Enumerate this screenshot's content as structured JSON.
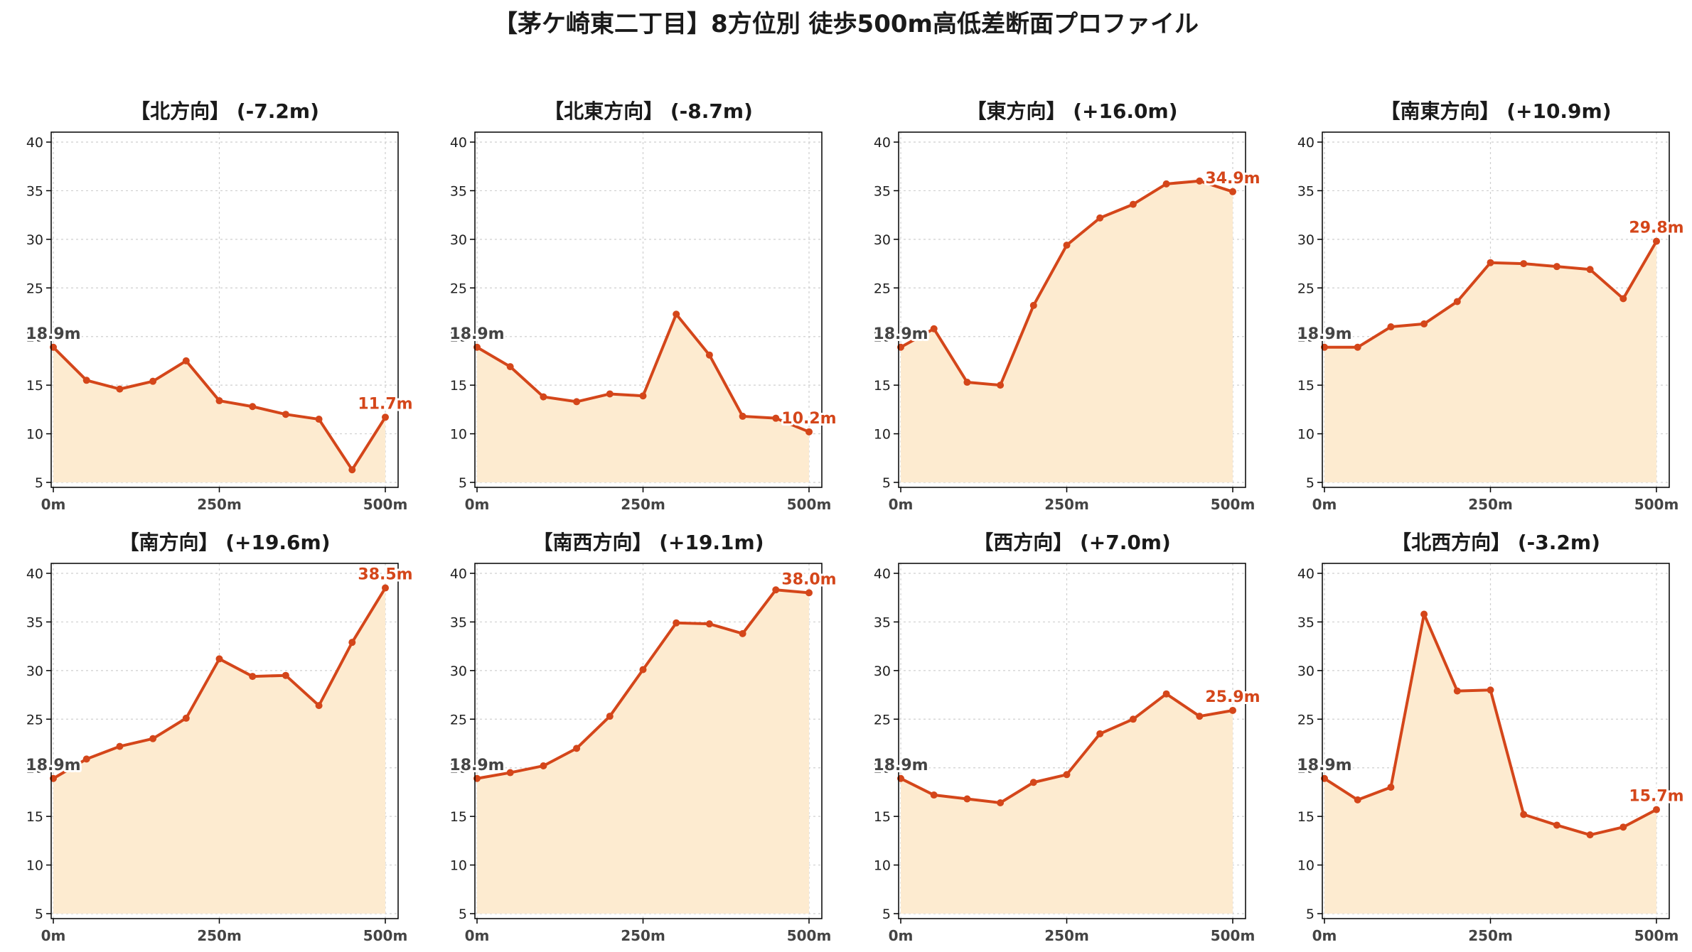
{
  "title": "【茅ケ崎東二丁目】8方位別 徒歩500m高低差断面プロファイル",
  "colors": {
    "line": "#d4461a",
    "fill": "#fdebd0",
    "start_label": "#444444",
    "end_label": "#d4461a"
  },
  "chart_data": [
    {
      "type": "area",
      "title": "【北方向】 (-7.2m)",
      "x": [
        0,
        50,
        100,
        150,
        200,
        250,
        300,
        350,
        400,
        450,
        500
      ],
      "y": [
        18.9,
        15.5,
        14.6,
        15.4,
        17.5,
        13.4,
        12.8,
        12.0,
        11.5,
        6.3,
        11.7
      ],
      "start_label": "18.9m",
      "end_label": "11.7m",
      "xticks": [
        0,
        250,
        500
      ],
      "xtick_labels": [
        "0m",
        "250m",
        "500m"
      ],
      "yticks": [
        5,
        10,
        15,
        20,
        25,
        30,
        35,
        40
      ],
      "ytick_labels": [
        "5",
        "10",
        "15",
        "20",
        "25",
        "30",
        "35",
        "40"
      ],
      "xlim": [
        0,
        500
      ],
      "ylim": [
        5,
        40
      ],
      "grid": true
    },
    {
      "type": "area",
      "title": "【北東方向】 (-8.7m)",
      "x": [
        0,
        50,
        100,
        150,
        200,
        250,
        300,
        350,
        400,
        450,
        500
      ],
      "y": [
        18.9,
        16.9,
        13.8,
        13.3,
        14.1,
        13.9,
        22.3,
        18.1,
        11.8,
        11.6,
        10.2
      ],
      "start_label": "18.9m",
      "end_label": "10.2m",
      "xticks": [
        0,
        250,
        500
      ],
      "xtick_labels": [
        "0m",
        "250m",
        "500m"
      ],
      "yticks": [
        5,
        10,
        15,
        20,
        25,
        30,
        35,
        40
      ],
      "ytick_labels": [
        "5",
        "10",
        "15",
        "20",
        "25",
        "30",
        "35",
        "40"
      ],
      "xlim": [
        0,
        500
      ],
      "ylim": [
        5,
        40
      ],
      "grid": true
    },
    {
      "type": "area",
      "title": "【東方向】 (+16.0m)",
      "x": [
        0,
        50,
        100,
        150,
        200,
        250,
        300,
        350,
        400,
        450,
        500
      ],
      "y": [
        18.9,
        20.8,
        15.3,
        15.0,
        23.2,
        29.4,
        32.2,
        33.6,
        35.7,
        36.0,
        34.9
      ],
      "start_label": "18.9m",
      "end_label": "34.9m",
      "xticks": [
        0,
        250,
        500
      ],
      "xtick_labels": [
        "0m",
        "250m",
        "500m"
      ],
      "yticks": [
        5,
        10,
        15,
        20,
        25,
        30,
        35,
        40
      ],
      "ytick_labels": [
        "5",
        "10",
        "15",
        "20",
        "25",
        "30",
        "35",
        "40"
      ],
      "xlim": [
        0,
        500
      ],
      "ylim": [
        5,
        40
      ],
      "grid": true
    },
    {
      "type": "area",
      "title": "【南東方向】 (+10.9m)",
      "x": [
        0,
        50,
        100,
        150,
        200,
        250,
        300,
        350,
        400,
        450,
        500
      ],
      "y": [
        18.9,
        18.9,
        21.0,
        21.3,
        23.6,
        27.6,
        27.5,
        27.2,
        26.9,
        23.9,
        29.8
      ],
      "start_label": "18.9m",
      "end_label": "29.8m",
      "xticks": [
        0,
        250,
        500
      ],
      "xtick_labels": [
        "0m",
        "250m",
        "500m"
      ],
      "yticks": [
        5,
        10,
        15,
        20,
        25,
        30,
        35,
        40
      ],
      "ytick_labels": [
        "5",
        "10",
        "15",
        "20",
        "25",
        "30",
        "35",
        "40"
      ],
      "xlim": [
        0,
        500
      ],
      "ylim": [
        5,
        40
      ],
      "grid": true
    },
    {
      "type": "area",
      "title": "【南方向】 (+19.6m)",
      "x": [
        0,
        50,
        100,
        150,
        200,
        250,
        300,
        350,
        400,
        450,
        500
      ],
      "y": [
        18.9,
        20.9,
        22.2,
        23.0,
        25.1,
        31.2,
        29.4,
        29.5,
        26.4,
        32.9,
        38.5
      ],
      "start_label": "18.9m",
      "end_label": "38.5m",
      "xticks": [
        0,
        250,
        500
      ],
      "xtick_labels": [
        "0m",
        "250m",
        "500m"
      ],
      "yticks": [
        5,
        10,
        15,
        20,
        25,
        30,
        35,
        40
      ],
      "ytick_labels": [
        "5",
        "10",
        "15",
        "20",
        "25",
        "30",
        "35",
        "40"
      ],
      "xlim": [
        0,
        500
      ],
      "ylim": [
        5,
        40
      ],
      "grid": true
    },
    {
      "type": "area",
      "title": "【南西方向】 (+19.1m)",
      "x": [
        0,
        50,
        100,
        150,
        200,
        250,
        300,
        350,
        400,
        450,
        500
      ],
      "y": [
        18.9,
        19.5,
        20.2,
        22.0,
        25.3,
        30.1,
        34.9,
        34.8,
        33.8,
        38.3,
        38.0
      ],
      "start_label": "18.9m",
      "end_label": "38.0m",
      "xticks": [
        0,
        250,
        500
      ],
      "xtick_labels": [
        "0m",
        "250m",
        "500m"
      ],
      "yticks": [
        5,
        10,
        15,
        20,
        25,
        30,
        35,
        40
      ],
      "ytick_labels": [
        "5",
        "10",
        "15",
        "20",
        "25",
        "30",
        "35",
        "40"
      ],
      "xlim": [
        0,
        500
      ],
      "ylim": [
        5,
        40
      ],
      "grid": true
    },
    {
      "type": "area",
      "title": "【西方向】 (+7.0m)",
      "x": [
        0,
        50,
        100,
        150,
        200,
        250,
        300,
        350,
        400,
        450,
        500
      ],
      "y": [
        18.9,
        17.2,
        16.8,
        16.4,
        18.5,
        19.3,
        23.5,
        25.0,
        27.6,
        25.3,
        25.9
      ],
      "start_label": "18.9m",
      "end_label": "25.9m",
      "xticks": [
        0,
        250,
        500
      ],
      "xtick_labels": [
        "0m",
        "250m",
        "500m"
      ],
      "yticks": [
        5,
        10,
        15,
        20,
        25,
        30,
        35,
        40
      ],
      "ytick_labels": [
        "5",
        "10",
        "15",
        "20",
        "25",
        "30",
        "35",
        "40"
      ],
      "xlim": [
        0,
        500
      ],
      "ylim": [
        5,
        40
      ],
      "grid": true
    },
    {
      "type": "area",
      "title": "【北西方向】 (-3.2m)",
      "x": [
        0,
        50,
        100,
        150,
        200,
        250,
        300,
        350,
        400,
        450,
        500
      ],
      "y": [
        18.9,
        16.7,
        18.0,
        35.8,
        27.9,
        28.0,
        15.2,
        14.1,
        13.1,
        13.9,
        15.7
      ],
      "start_label": "18.9m",
      "end_label": "15.7m",
      "xticks": [
        0,
        250,
        500
      ],
      "xtick_labels": [
        "0m",
        "250m",
        "500m"
      ],
      "yticks": [
        5,
        10,
        15,
        20,
        25,
        30,
        35,
        40
      ],
      "ytick_labels": [
        "5",
        "10",
        "15",
        "20",
        "25",
        "30",
        "35",
        "40"
      ],
      "xlim": [
        0,
        500
      ],
      "ylim": [
        5,
        40
      ],
      "grid": true
    }
  ]
}
